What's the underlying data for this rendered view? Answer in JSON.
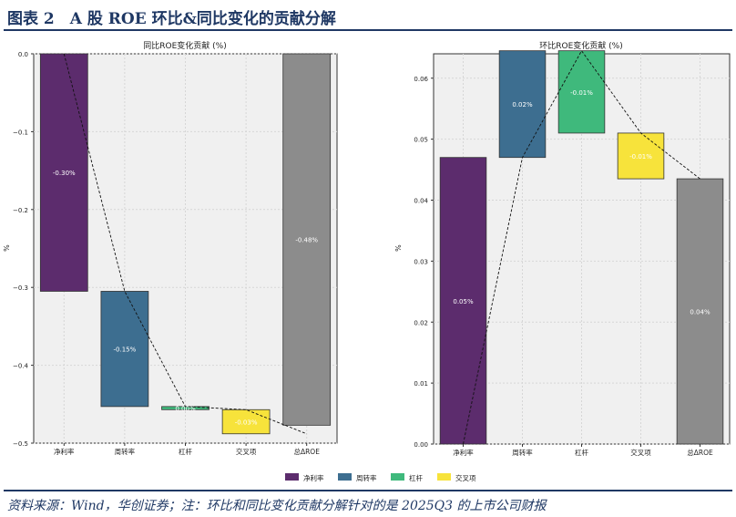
{
  "header": {
    "title": "图表 2　A 股 ROE 环比&同比变化的贡献分解"
  },
  "footer": {
    "source": "资料来源：Wind，华创证券；注：环比和同比变化贡献分解针对的是 2025Q3 的上市公司财报"
  },
  "legend": {
    "placement": "bottom-center",
    "items": [
      {
        "label": "净利率",
        "color": "#5c2c6d"
      },
      {
        "label": "周转率",
        "color": "#3d6e90"
      },
      {
        "label": "杠杆",
        "color": "#3fb97c"
      },
      {
        "label": "交叉项",
        "color": "#f7e33b"
      }
    ]
  },
  "chart_data": [
    {
      "type": "bar",
      "subtype": "waterfall",
      "title": "同比ROE变化贡献 (%)",
      "ylabel": "%",
      "xlabel": "",
      "categories": [
        "净利率",
        "周转率",
        "杠杆",
        "交叉项",
        "总ΔROE"
      ],
      "values": [
        -0.305,
        -0.148,
        -0.004,
        -0.031,
        -0.477
      ],
      "data_labels": [
        "-0.30%",
        "-0.15%",
        "0.00%",
        "-0.03%",
        "-0.48%"
      ],
      "colors": [
        "#5c2c6d",
        "#3d6e90",
        "#3fb97c",
        "#f7e33b",
        "#8c8c8c"
      ],
      "ylim": [
        -0.5,
        0.0
      ],
      "yticks": [
        0.0,
        -0.1,
        -0.2,
        -0.3,
        -0.4,
        -0.5
      ],
      "ytick_labels": [
        "0.0",
        "−0.1",
        "−0.2",
        "−0.3",
        "−0.4",
        "−0.5"
      ],
      "grid": true
    },
    {
      "type": "bar",
      "subtype": "waterfall",
      "title": "环比ROE变化贡献 (%)",
      "ylabel": "%",
      "xlabel": "",
      "categories": [
        "净利率",
        "周转率",
        "杠杆",
        "交叉项",
        "总ΔROE"
      ],
      "values": [
        0.047,
        0.0175,
        -0.0135,
        -0.0075,
        0.0435
      ],
      "data_labels": [
        "0.05%",
        "0.02%",
        "-0.01%",
        "-0.01%",
        "0.04%"
      ],
      "colors": [
        "#5c2c6d",
        "#3d6e90",
        "#3fb97c",
        "#f7e33b",
        "#8c8c8c"
      ],
      "ylim": [
        0.0,
        0.064
      ],
      "yticks": [
        0.0,
        0.01,
        0.02,
        0.03,
        0.04,
        0.05,
        0.06
      ],
      "ytick_labels": [
        "0.00",
        "0.01",
        "0.02",
        "0.03",
        "0.04",
        "0.05",
        "0.06"
      ],
      "grid": true
    }
  ]
}
